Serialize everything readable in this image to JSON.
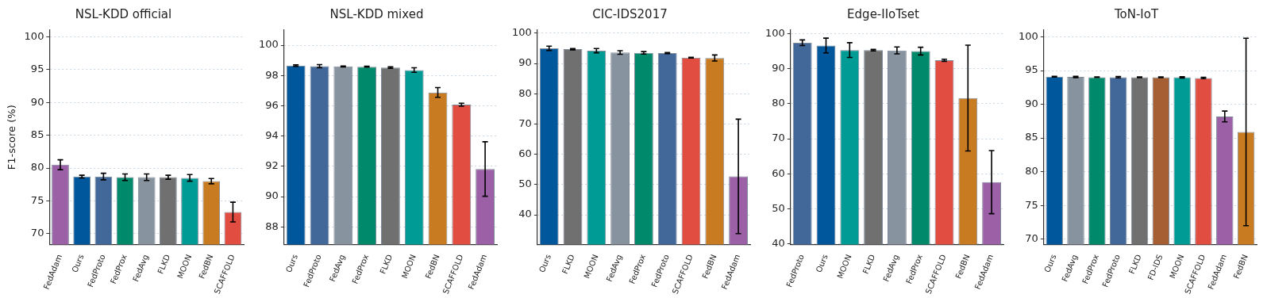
{
  "chart_data": [
    {
      "type": "bar",
      "title": "NSL-KDD official",
      "ylabel": "F1-score (%)",
      "categories": [
        "FedAdam",
        "Ours",
        "FedProto",
        "FedProx",
        "FedAvg",
        "FLKD",
        "MOON",
        "FedBN",
        "SCAFFOLD"
      ],
      "values": [
        80.5,
        78.7,
        78.7,
        78.6,
        78.6,
        78.6,
        78.5,
        78.0,
        73.3
      ],
      "errors": [
        0.75,
        0.2,
        0.5,
        0.5,
        0.5,
        0.3,
        0.5,
        0.4,
        1.5
      ],
      "colors": [
        "#9b60a6",
        "#00579b",
        "#426799",
        "#00896b",
        "#8893a0",
        "#707070",
        "#009b94",
        "#c87b20",
        "#e24d42"
      ],
      "ylim": [
        68.35,
        101
      ],
      "yticks": [
        70,
        75,
        80,
        85,
        90,
        95,
        100
      ],
      "grid": "y"
    },
    {
      "type": "bar",
      "title": "NSL-KDD mixed",
      "categories": [
        "Ours",
        "FedProto",
        "FedAvg",
        "FedProx",
        "FLKD",
        "MOON",
        "FedBN",
        "SCAFFOLD",
        "FedAdam"
      ],
      "values": [
        98.66,
        98.62,
        98.6,
        98.58,
        98.52,
        98.36,
        96.88,
        96.07,
        91.82
      ],
      "errors": [
        0.05,
        0.1,
        0.03,
        0.03,
        0.05,
        0.15,
        0.32,
        0.1,
        1.8
      ],
      "colors": [
        "#00579b",
        "#426799",
        "#8893a0",
        "#00896b",
        "#707070",
        "#009b94",
        "#c87b20",
        "#e24d42",
        "#9b60a6"
      ],
      "ylim": [
        86.83,
        101
      ],
      "yticks": [
        88,
        90,
        92,
        94,
        96,
        98,
        100
      ],
      "grid": "y"
    },
    {
      "type": "bar",
      "title": "CIC-IDS2017",
      "categories": [
        "Ours",
        "FLKD",
        "MOON",
        "FedAvg",
        "FedProx",
        "FedProto",
        "SCAFFOLD",
        "FedBN",
        "FedAdam"
      ],
      "values": [
        95.0,
        94.7,
        94.2,
        93.6,
        93.5,
        93.4,
        91.9,
        91.8,
        52.7
      ],
      "errors": [
        0.7,
        0.2,
        0.7,
        0.6,
        0.4,
        0.2,
        0.1,
        1.0,
        18.9
      ],
      "colors": [
        "#00579b",
        "#707070",
        "#009b94",
        "#8893a0",
        "#00896b",
        "#426799",
        "#e24d42",
        "#c87b20",
        "#9b60a6"
      ],
      "ylim": [
        30.2,
        101
      ],
      "yticks": [
        40,
        50,
        60,
        70,
        80,
        90,
        100
      ],
      "grid": "y"
    },
    {
      "type": "bar",
      "title": "Edge-IIoTset",
      "categories": [
        "FedProto",
        "Ours",
        "MOON",
        "FLKD",
        "FedAvg",
        "FedProx",
        "SCAFFOLD",
        "FedBN",
        "FedAdam"
      ],
      "values": [
        97.4,
        96.6,
        95.3,
        95.3,
        95.2,
        95.0,
        92.4,
        81.6,
        57.6
      ],
      "errors": [
        0.8,
        2.1,
        2.1,
        0.2,
        1.0,
        1.1,
        0.3,
        15.1,
        9.0
      ],
      "colors": [
        "#426799",
        "#00579b",
        "#009b94",
        "#707070",
        "#8893a0",
        "#00896b",
        "#e24d42",
        "#c87b20",
        "#9b60a6"
      ],
      "ylim": [
        39.8,
        101
      ],
      "yticks": [
        40,
        50,
        60,
        70,
        80,
        90,
        100
      ],
      "grid": "y"
    },
    {
      "type": "bar",
      "title": "ToN-IoT",
      "categories": [
        "Ours",
        "FedAvg",
        "FedProx",
        "FedProto",
        "FLKD",
        "FD-IDS",
        "MOON",
        "SCAFFOLD",
        "FedAdam",
        "FedBN"
      ],
      "values": [
        94.1,
        94.06,
        94.02,
        94.02,
        94.0,
        94.0,
        94.0,
        93.9,
        88.2,
        85.9
      ],
      "errors": [
        0.05,
        0.1,
        0.05,
        0.1,
        0.05,
        0.05,
        0.1,
        0.1,
        0.8,
        13.9
      ],
      "colors": [
        "#00579b",
        "#8893a0",
        "#00896b",
        "#426799",
        "#707070",
        "#a65f33",
        "#009b94",
        "#e24d42",
        "#9b60a6",
        "#c87b20"
      ],
      "ylim": [
        69.2,
        101
      ],
      "yticks": [
        70,
        75,
        80,
        85,
        90,
        95,
        100
      ],
      "grid": "y"
    }
  ]
}
